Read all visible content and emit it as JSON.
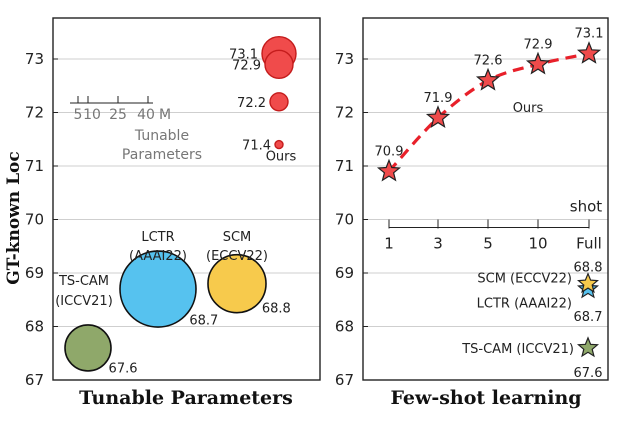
{
  "chart_data": [
    {
      "type": "scatter",
      "title": "Tunable Parameters",
      "ylabel": "GT-known Loc",
      "ylim": [
        67,
        73.7
      ],
      "yticks": [
        67,
        68,
        69,
        70,
        71,
        72,
        73
      ],
      "ours_label": "Ours",
      "ours_points": [
        {
          "label": "73.1",
          "value": 73.1,
          "size": 17
        },
        {
          "label": "72.9",
          "value": 72.9,
          "size": 14
        },
        {
          "label": "72.2",
          "value": 72.2,
          "size": 9
        },
        {
          "label": "71.4",
          "value": 71.4,
          "size": 4
        }
      ],
      "baselines": [
        {
          "name": "TS-CAM",
          "venue": "(ICCV21)",
          "label": "67.6",
          "value": 67.6,
          "size": 23,
          "color": "#8fa86a"
        },
        {
          "name": "LCTR",
          "venue": "(AAAI22)",
          "label": "68.7",
          "value": 68.7,
          "size": 38,
          "color": "#56c2ef"
        },
        {
          "name": "SCM",
          "venue": "(ECCV22)",
          "label": "68.8",
          "value": 68.8,
          "size": 29,
          "color": "#f7ca4c"
        }
      ],
      "size_legend": {
        "ticks": [
          "5",
          "10",
          "25",
          "40"
        ],
        "unit": "M",
        "caption_line1": "Tunable",
        "caption_line2": "Parameters"
      },
      "ours_color": "#f04b4b"
    },
    {
      "type": "line",
      "title": "Few-shot learning",
      "ylim": [
        67,
        73.7
      ],
      "yticks": [
        67,
        68,
        69,
        70,
        71,
        72,
        73
      ],
      "x": [
        "1",
        "3",
        "5",
        "10",
        "Full"
      ],
      "xaxis_label": "shot",
      "series": [
        {
          "name": "Ours",
          "values": [
            70.9,
            71.9,
            72.6,
            72.9,
            73.1
          ],
          "color": "#e8202a"
        }
      ],
      "baselines": [
        {
          "name": "SCM (ECCV22)",
          "label": "68.8",
          "value": 68.8,
          "color": "#f7ca4c"
        },
        {
          "name": "LCTR (AAAI22)",
          "label": "68.7",
          "value": 68.7,
          "color": "#56c2ef"
        },
        {
          "name": "TS-CAM (ICCV21)",
          "label": "67.6",
          "value": 67.6,
          "color": "#8fa86a"
        }
      ],
      "series_label": "Ours"
    }
  ]
}
